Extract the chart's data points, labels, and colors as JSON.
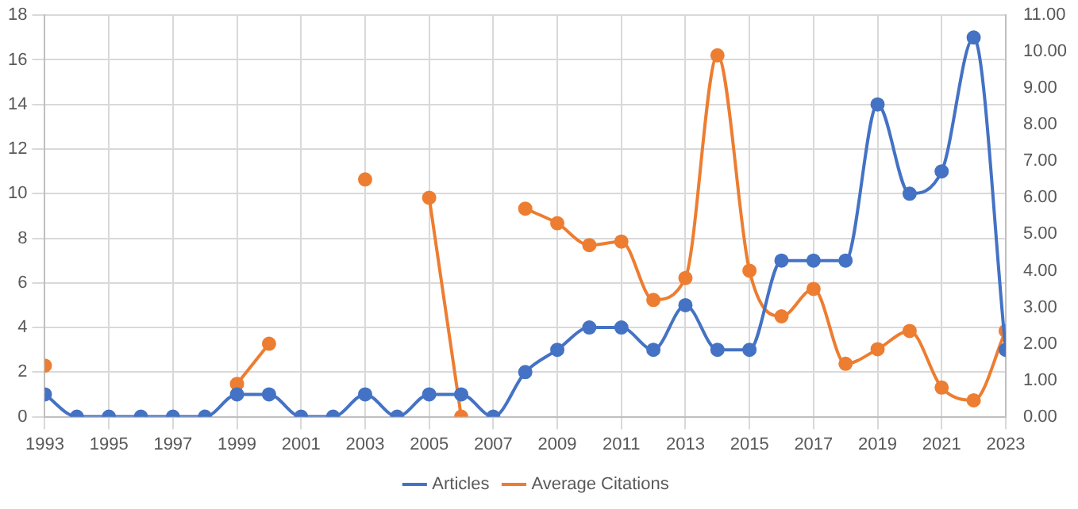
{
  "chart_data": {
    "type": "line",
    "x": [
      1993,
      1994,
      1995,
      1996,
      1997,
      1998,
      1999,
      2000,
      2001,
      2002,
      2003,
      2004,
      2005,
      2006,
      2007,
      2008,
      2009,
      2010,
      2011,
      2012,
      2013,
      2014,
      2015,
      2016,
      2017,
      2018,
      2019,
      2020,
      2021,
      2022,
      2023
    ],
    "series": [
      {
        "name": "Articles",
        "color": "#4472c4",
        "values": [
          1,
          0,
          0,
          0,
          0,
          0,
          1,
          1,
          0,
          0,
          1,
          0,
          1,
          1,
          0,
          2,
          3,
          4,
          4,
          3,
          5,
          3,
          3,
          7,
          7,
          7,
          14,
          10,
          11,
          17,
          3
        ]
      },
      {
        "name": "Average Citations",
        "color": "#ed7d31",
        "axis": "y2",
        "values": [
          1.4,
          null,
          null,
          null,
          null,
          null,
          0.9,
          2.0,
          null,
          null,
          6.5,
          null,
          6.0,
          0,
          null,
          5.7,
          5.3,
          4.7,
          4.8,
          3.2,
          3.8,
          9.9,
          4.0,
          2.75,
          3.5,
          1.45,
          1.85,
          2.35,
          0.8,
          0.45,
          2.35
        ]
      }
    ],
    "xlim": [
      1993,
      2023
    ],
    "xticks": [
      1993,
      1995,
      1997,
      1999,
      2001,
      2003,
      2005,
      2007,
      2009,
      2011,
      2013,
      2015,
      2017,
      2019,
      2021,
      2023
    ],
    "ylim": [
      0,
      18
    ],
    "yticks": [
      0,
      2,
      4,
      6,
      8,
      10,
      12,
      14,
      16,
      18
    ],
    "y2lim": [
      0,
      11
    ],
    "y2ticks": [
      {
        "value": 0,
        "label": "0.00"
      },
      {
        "value": 1,
        "label": "1.00"
      },
      {
        "value": 2,
        "label": "2.00"
      },
      {
        "value": 3,
        "label": "3.00"
      },
      {
        "value": 4,
        "label": "4.00"
      },
      {
        "value": 5,
        "label": "5.00"
      },
      {
        "value": 6,
        "label": "6.00"
      },
      {
        "value": 7,
        "label": "7.00"
      },
      {
        "value": 8,
        "label": "8.00"
      },
      {
        "value": 9,
        "label": "9.00"
      },
      {
        "value": 10,
        "label": "10.00"
      },
      {
        "value": 11,
        "label": "11.00"
      }
    ],
    "grid": true,
    "legend": "bottom",
    "marker": "circle",
    "line_style": "solid"
  }
}
